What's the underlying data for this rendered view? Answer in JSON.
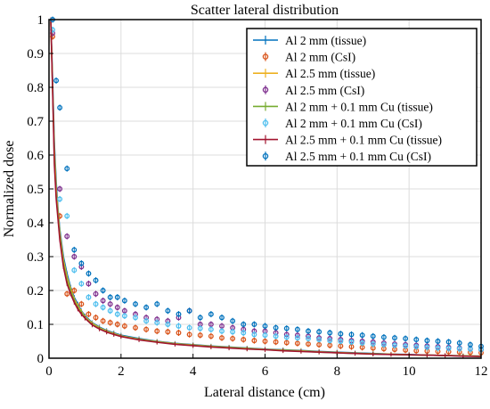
{
  "chart_data": {
    "type": "scatter",
    "title": "Scatter lateral distribution",
    "xlabel": "Lateral distance (cm)",
    "ylabel": "Normalized dose",
    "xlim": [
      0,
      12
    ],
    "ylim": [
      0,
      1
    ],
    "xticks": [
      "0",
      "2",
      "4",
      "6",
      "8",
      "10",
      "12"
    ],
    "yticks": [
      "0",
      "0.1",
      "0.2",
      "0.3",
      "0.4",
      "0.5",
      "0.6",
      "0.7",
      "0.8",
      "0.9",
      "1"
    ],
    "grid": true,
    "legend_position": "top-right",
    "series": [
      {
        "name": "Al 2 mm (tissue)",
        "style": "line",
        "color": "#0072BD",
        "x": [
          0.05,
          0.1,
          0.15,
          0.2,
          0.25,
          0.3,
          0.4,
          0.5,
          0.6,
          0.7,
          0.8,
          0.9,
          1.0,
          1.2,
          1.4,
          1.6,
          1.8,
          2.0,
          2.5,
          3.0,
          3.5,
          4.0,
          4.5,
          5.0,
          5.5,
          6.0,
          6.5,
          7.0,
          7.5,
          8.0,
          8.5,
          9.0,
          9.5,
          10.0,
          10.5,
          11.0,
          11.5,
          12.0
        ],
        "y": [
          1.0,
          0.82,
          0.63,
          0.52,
          0.44,
          0.38,
          0.3,
          0.25,
          0.21,
          0.18,
          0.16,
          0.14,
          0.125,
          0.105,
          0.092,
          0.082,
          0.075,
          0.068,
          0.058,
          0.05,
          0.044,
          0.04,
          0.036,
          0.033,
          0.03,
          0.027,
          0.025,
          0.023,
          0.02,
          0.018,
          0.016,
          0.014,
          0.012,
          0.011,
          0.009,
          0.008,
          0.007,
          0.006
        ]
      },
      {
        "name": "Al 2 mm (CsI)",
        "style": "marker",
        "color": "#D95319",
        "x": [
          0.1,
          0.3,
          0.5,
          0.7,
          0.9,
          1.1,
          1.3,
          1.5,
          1.7,
          1.9,
          2.1,
          2.4,
          2.7,
          3.0,
          3.3,
          3.6,
          3.9,
          4.2,
          4.5,
          4.8,
          5.1,
          5.4,
          5.7,
          6.0,
          6.3,
          6.6,
          6.9,
          7.2,
          7.5,
          7.8,
          8.1,
          8.4,
          8.7,
          9.0,
          9.3,
          9.6,
          9.9,
          10.2,
          10.5,
          10.8,
          11.1,
          11.4,
          11.7,
          12.0
        ],
        "y": [
          0.95,
          0.42,
          0.19,
          0.2,
          0.16,
          0.13,
          0.12,
          0.11,
          0.105,
          0.1,
          0.095,
          0.09,
          0.085,
          0.08,
          0.078,
          0.075,
          0.07,
          0.068,
          0.065,
          0.06,
          0.058,
          0.055,
          0.052,
          0.05,
          0.048,
          0.046,
          0.044,
          0.042,
          0.04,
          0.038,
          0.036,
          0.034,
          0.032,
          0.03,
          0.028,
          0.026,
          0.024,
          0.022,
          0.021,
          0.02,
          0.019,
          0.018,
          0.017,
          0.016
        ]
      },
      {
        "name": "Al 2.5 mm (tissue)",
        "style": "line",
        "color": "#EDB120",
        "x": [
          0.05,
          0.1,
          0.15,
          0.2,
          0.25,
          0.3,
          0.4,
          0.5,
          0.6,
          0.7,
          0.8,
          0.9,
          1.0,
          1.2,
          1.4,
          1.6,
          1.8,
          2.0,
          2.5,
          3.0,
          3.5,
          4.0,
          4.5,
          5.0,
          5.5,
          6.0,
          6.5,
          7.0,
          7.5,
          8.0,
          8.5,
          9.0,
          9.5,
          10.0,
          10.5,
          11.0,
          11.5,
          12.0
        ],
        "y": [
          1.0,
          0.8,
          0.61,
          0.5,
          0.43,
          0.37,
          0.29,
          0.24,
          0.205,
          0.175,
          0.155,
          0.138,
          0.122,
          0.103,
          0.09,
          0.08,
          0.073,
          0.066,
          0.056,
          0.049,
          0.043,
          0.039,
          0.035,
          0.032,
          0.029,
          0.026,
          0.024,
          0.022,
          0.019,
          0.017,
          0.015,
          0.013,
          0.012,
          0.01,
          0.009,
          0.008,
          0.007,
          0.006
        ]
      },
      {
        "name": "Al 2.5 mm (CsI)",
        "style": "marker",
        "color": "#7E2F8E",
        "x": [
          0.1,
          0.3,
          0.5,
          0.7,
          0.9,
          1.1,
          1.3,
          1.5,
          1.7,
          1.9,
          2.1,
          2.4,
          2.7,
          3.0,
          3.3,
          3.6,
          3.9,
          4.2,
          4.5,
          4.8,
          5.1,
          5.4,
          5.7,
          6.0,
          6.3,
          6.6,
          6.9,
          7.2,
          7.5,
          7.8,
          8.1,
          8.4,
          8.7,
          9.0,
          9.3,
          9.6,
          9.9,
          10.2,
          10.5,
          10.8,
          11.1,
          11.4,
          11.7,
          12.0
        ],
        "y": [
          0.96,
          0.5,
          0.36,
          0.3,
          0.27,
          0.22,
          0.19,
          0.17,
          0.16,
          0.15,
          0.14,
          0.13,
          0.12,
          0.115,
          0.11,
          0.12,
          0.14,
          0.1,
          0.1,
          0.095,
          0.09,
          0.085,
          0.08,
          0.08,
          0.075,
          0.07,
          0.068,
          0.065,
          0.06,
          0.058,
          0.055,
          0.052,
          0.05,
          0.048,
          0.045,
          0.042,
          0.04,
          0.038,
          0.036,
          0.034,
          0.032,
          0.03,
          0.028,
          0.026
        ]
      },
      {
        "name": "Al 2 mm + 0.1 mm Cu (tissue)",
        "style": "line",
        "color": "#77AC30",
        "x": [
          0.05,
          0.1,
          0.15,
          0.2,
          0.25,
          0.3,
          0.4,
          0.5,
          0.6,
          0.7,
          0.8,
          0.9,
          1.0,
          1.2,
          1.4,
          1.6,
          1.8,
          2.0,
          2.5,
          3.0,
          3.5,
          4.0,
          4.5,
          5.0,
          5.5,
          6.0,
          6.5,
          7.0,
          7.5,
          8.0,
          8.5,
          9.0,
          9.5,
          10.0,
          10.5,
          11.0,
          11.5,
          12.0
        ],
        "y": [
          1.0,
          0.8,
          0.58,
          0.48,
          0.42,
          0.36,
          0.28,
          0.23,
          0.2,
          0.17,
          0.15,
          0.135,
          0.12,
          0.1,
          0.088,
          0.078,
          0.071,
          0.065,
          0.055,
          0.048,
          0.042,
          0.038,
          0.034,
          0.031,
          0.028,
          0.025,
          0.023,
          0.021,
          0.018,
          0.016,
          0.014,
          0.013,
          0.011,
          0.01,
          0.009,
          0.008,
          0.007,
          0.005
        ]
      },
      {
        "name": "Al 2 mm + 0.1 mm Cu (CsI)",
        "style": "marker",
        "color": "#4DBEEE",
        "x": [
          0.1,
          0.3,
          0.5,
          0.7,
          0.9,
          1.1,
          1.3,
          1.5,
          1.7,
          1.9,
          2.1,
          2.4,
          2.7,
          3.0,
          3.3,
          3.6,
          3.9,
          4.2,
          4.5,
          4.8,
          5.1,
          5.4,
          5.7,
          6.0,
          6.3,
          6.6,
          6.9,
          7.2,
          7.5,
          7.8,
          8.1,
          8.4,
          8.7,
          9.0,
          9.3,
          9.6,
          9.9,
          10.2,
          10.5,
          10.8,
          11.1,
          11.4,
          11.7,
          12.0
        ],
        "y": [
          0.97,
          0.47,
          0.42,
          0.26,
          0.22,
          0.18,
          0.16,
          0.15,
          0.14,
          0.13,
          0.125,
          0.12,
          0.11,
          0.105,
          0.1,
          0.095,
          0.09,
          0.088,
          0.085,
          0.08,
          0.078,
          0.075,
          0.07,
          0.068,
          0.065,
          0.062,
          0.06,
          0.058,
          0.055,
          0.052,
          0.05,
          0.048,
          0.045,
          0.042,
          0.04,
          0.038,
          0.036,
          0.034,
          0.032,
          0.03,
          0.029,
          0.028,
          0.027,
          0.026
        ]
      },
      {
        "name": "Al 2.5 mm + 0.1 mm Cu (tissue)",
        "style": "line",
        "color": "#A2142F",
        "x": [
          0.05,
          0.1,
          0.15,
          0.2,
          0.25,
          0.3,
          0.4,
          0.5,
          0.6,
          0.7,
          0.8,
          0.9,
          1.0,
          1.2,
          1.4,
          1.6,
          1.8,
          2.0,
          2.5,
          3.0,
          3.5,
          4.0,
          4.5,
          5.0,
          5.5,
          6.0,
          6.5,
          7.0,
          7.5,
          8.0,
          8.5,
          9.0,
          9.5,
          10.0,
          10.5,
          11.0,
          11.5,
          12.0
        ],
        "y": [
          1.0,
          0.79,
          0.57,
          0.47,
          0.41,
          0.35,
          0.27,
          0.22,
          0.19,
          0.165,
          0.145,
          0.13,
          0.118,
          0.098,
          0.086,
          0.077,
          0.07,
          0.064,
          0.054,
          0.047,
          0.041,
          0.037,
          0.033,
          0.03,
          0.027,
          0.025,
          0.022,
          0.02,
          0.018,
          0.016,
          0.014,
          0.012,
          0.011,
          0.01,
          0.009,
          0.008,
          0.006,
          0.005
        ]
      },
      {
        "name": "Al 2.5 mm + 0.1 mm Cu (CsI)",
        "style": "marker",
        "color": "#0072BD",
        "x": [
          0.1,
          0.2,
          0.3,
          0.5,
          0.7,
          0.9,
          1.1,
          1.3,
          1.5,
          1.7,
          1.9,
          2.1,
          2.4,
          2.7,
          3.0,
          3.3,
          3.6,
          3.9,
          4.2,
          4.5,
          4.8,
          5.1,
          5.4,
          5.7,
          6.0,
          6.3,
          6.6,
          6.9,
          7.2,
          7.5,
          7.8,
          8.1,
          8.4,
          8.7,
          9.0,
          9.3,
          9.6,
          9.9,
          10.2,
          10.5,
          10.8,
          11.1,
          11.4,
          11.7,
          12.0
        ],
        "y": [
          1.0,
          0.82,
          0.74,
          0.56,
          0.32,
          0.28,
          0.25,
          0.23,
          0.2,
          0.18,
          0.18,
          0.17,
          0.16,
          0.15,
          0.16,
          0.14,
          0.13,
          0.14,
          0.12,
          0.13,
          0.12,
          0.11,
          0.1,
          0.1,
          0.095,
          0.09,
          0.088,
          0.085,
          0.08,
          0.078,
          0.075,
          0.072,
          0.07,
          0.068,
          0.065,
          0.062,
          0.06,
          0.058,
          0.055,
          0.052,
          0.05,
          0.048,
          0.045,
          0.04,
          0.035
        ]
      }
    ]
  }
}
